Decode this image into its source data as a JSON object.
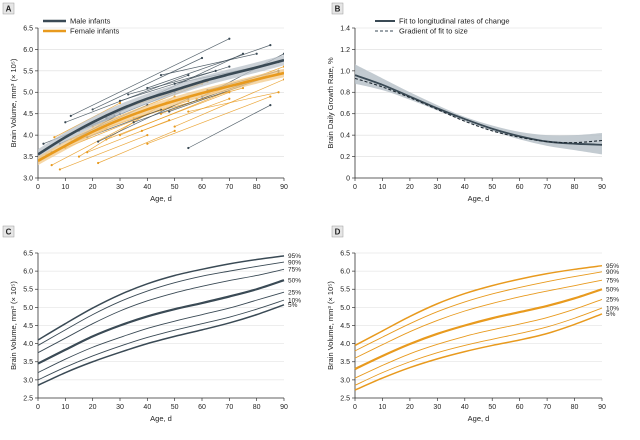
{
  "colors": {
    "male": "#3a4a55",
    "female": "#e89a1e",
    "band": "#b9c2c9",
    "grid": "#dcdcdc",
    "letter_box": "#e6e6e6"
  },
  "chart_data": [
    {
      "panel": "A",
      "type": "line",
      "xlabel": "Age, d",
      "ylabel": "Brain Volume, mm³ (× 10⁵)",
      "xlim": [
        0,
        90
      ],
      "ylim": [
        3.0,
        6.5
      ],
      "xticks": [
        "0",
        "10",
        "20",
        "30",
        "40",
        "50",
        "60",
        "70",
        "80",
        "90"
      ],
      "yticks": [
        "3.0",
        "3.5",
        "4.0",
        "4.5",
        "5.0",
        "5.5",
        "6.0",
        "6.5"
      ],
      "grid": "horizontal",
      "legend": {
        "position": "top-left",
        "entries": [
          "Male infants",
          "Female infants"
        ]
      },
      "series": [
        {
          "name": "Male infants",
          "color": "#3a4a55",
          "x": [
            0,
            10,
            20,
            30,
            40,
            50,
            60,
            70,
            80,
            90
          ],
          "y": [
            3.55,
            3.95,
            4.3,
            4.6,
            4.85,
            5.05,
            5.25,
            5.42,
            5.58,
            5.75
          ],
          "band_half_width": 0.12
        },
        {
          "name": "Female infants",
          "color": "#e89a1e",
          "x": [
            0,
            10,
            20,
            30,
            40,
            50,
            60,
            70,
            80,
            90
          ],
          "y": [
            3.4,
            3.75,
            4.08,
            4.36,
            4.6,
            4.8,
            4.98,
            5.14,
            5.3,
            5.45
          ],
          "band_half_width": 0.1
        }
      ],
      "individual_trajectories": {
        "male": [
          [
            [
              5,
              3.6
            ],
            [
              30,
              4.5
            ]
          ],
          [
            [
              10,
              4.3
            ],
            [
              55,
              5.4
            ]
          ],
          [
            [
              20,
              4.6
            ],
            [
              60,
              5.8
            ]
          ],
          [
            [
              30,
              4.8
            ],
            [
              70,
              5.6
            ]
          ],
          [
            [
              40,
              5.1
            ],
            [
              85,
              6.1
            ]
          ],
          [
            [
              50,
              5.2
            ],
            [
              88,
              5.7
            ]
          ],
          [
            [
              8,
              3.8
            ],
            [
              40,
              4.7
            ]
          ],
          [
            [
              15,
              4.1
            ],
            [
              50,
              5.0
            ]
          ],
          [
            [
              25,
              4.4
            ],
            [
              75,
              5.9
            ]
          ],
          [
            [
              35,
              4.3
            ],
            [
              80,
              5.3
            ]
          ],
          [
            [
              45,
              5.4
            ],
            [
              80,
              5.9
            ]
          ],
          [
            [
              55,
              3.7
            ],
            [
              85,
              4.7
            ]
          ],
          [
            [
              60,
              4.9
            ],
            [
              90,
              5.9
            ]
          ],
          [
            [
              12,
              4.45
            ],
            [
              70,
              6.25
            ]
          ],
          [
            [
              2,
              3.8
            ],
            [
              28,
              4.45
            ]
          ],
          [
            [
              18,
              3.95
            ],
            [
              45,
              4.6
            ]
          ],
          [
            [
              33,
              4.95
            ],
            [
              65,
              5.5
            ]
          ],
          [
            [
              48,
              4.55
            ],
            [
              88,
              5.45
            ]
          ],
          [
            [
              62,
              5.05
            ],
            [
              88,
              5.5
            ]
          ],
          [
            [
              22,
              3.85
            ],
            [
              55,
              4.85
            ]
          ]
        ],
        "female": [
          [
            [
              5,
              3.3
            ],
            [
              35,
              4.3
            ]
          ],
          [
            [
              10,
              3.7
            ],
            [
              45,
              4.6
            ]
          ],
          [
            [
              15,
              3.5
            ],
            [
              50,
              4.9
            ]
          ],
          [
            [
              20,
              4.2
            ],
            [
              60,
              5.2
            ]
          ],
          [
            [
              25,
              3.9
            ],
            [
              70,
              5.0
            ]
          ],
          [
            [
              30,
              4.0
            ],
            [
              80,
              5.3
            ]
          ],
          [
            [
              8,
              3.2
            ],
            [
              40,
              4.0
            ]
          ],
          [
            [
              12,
              3.9
            ],
            [
              55,
              4.8
            ]
          ],
          [
            [
              35,
              4.4
            ],
            [
              75,
              5.1
            ]
          ],
          [
            [
              40,
              3.8
            ],
            [
              85,
              4.9
            ]
          ],
          [
            [
              45,
              4.5
            ],
            [
              88,
              5.5
            ]
          ],
          [
            [
              50,
              4.2
            ],
            [
              90,
              5.3
            ]
          ],
          [
            [
              3,
              3.55
            ],
            [
              25,
              4.15
            ]
          ],
          [
            [
              18,
              3.6
            ],
            [
              48,
              4.35
            ]
          ],
          [
            [
              28,
              4.55
            ],
            [
              62,
              5.25
            ]
          ],
          [
            [
              55,
              4.55
            ],
            [
              88,
              5.0
            ]
          ],
          [
            [
              6,
              3.95
            ],
            [
              30,
              4.75
            ]
          ],
          [
            [
              38,
              4.1
            ],
            [
              70,
              4.85
            ]
          ],
          [
            [
              58,
              4.85
            ],
            [
              90,
              5.6
            ]
          ],
          [
            [
              22,
              3.35
            ],
            [
              50,
              4.1
            ]
          ]
        ]
      }
    },
    {
      "panel": "B",
      "type": "line",
      "xlabel": "Age, d",
      "ylabel": "Brain Daily Growth Rate, %",
      "xlim": [
        0,
        90
      ],
      "ylim": [
        0,
        1.4
      ],
      "xticks": [
        "0",
        "10",
        "20",
        "30",
        "40",
        "50",
        "60",
        "70",
        "80",
        "90"
      ],
      "yticks": [
        "0",
        "0.2",
        "0.4",
        "0.6",
        "0.8",
        "1.0",
        "1.2",
        "1.4"
      ],
      "grid": "horizontal",
      "legend": {
        "position": "top-right",
        "entries": [
          "Fit to longitudinal rates of change",
          "Gradient of fit to size"
        ]
      },
      "series": [
        {
          "name": "Fit to longitudinal rates of change",
          "style": "solid",
          "x": [
            0,
            10,
            20,
            30,
            40,
            50,
            60,
            70,
            80,
            90
          ],
          "y": [
            0.96,
            0.87,
            0.76,
            0.65,
            0.55,
            0.46,
            0.39,
            0.34,
            0.32,
            0.31
          ],
          "band_low": [
            0.88,
            0.82,
            0.73,
            0.63,
            0.53,
            0.44,
            0.36,
            0.3,
            0.26,
            0.22
          ],
          "band_high": [
            1.06,
            0.93,
            0.8,
            0.68,
            0.57,
            0.49,
            0.43,
            0.4,
            0.4,
            0.42
          ]
        },
        {
          "name": "Gradient of fit to size",
          "style": "dashed",
          "x": [
            0,
            10,
            20,
            30,
            40,
            50,
            60,
            70,
            80,
            90
          ],
          "y": [
            0.93,
            0.85,
            0.75,
            0.64,
            0.53,
            0.44,
            0.38,
            0.34,
            0.33,
            0.35
          ]
        }
      ]
    },
    {
      "panel": "C",
      "type": "line",
      "xlabel": "Age, d",
      "ylabel": "Brain Volume, mm³ (× 10⁵)",
      "xlim": [
        0,
        90
      ],
      "ylim": [
        2.5,
        6.5
      ],
      "xticks": [
        "0",
        "10",
        "20",
        "30",
        "40",
        "50",
        "60",
        "70",
        "80",
        "90"
      ],
      "yticks": [
        "2.5",
        "3.0",
        "3.5",
        "4.0",
        "4.5",
        "5.0",
        "5.5",
        "6.0",
        "6.5"
      ],
      "grid": "horizontal",
      "color": "#3a4a55",
      "series": [
        {
          "name": "95%",
          "x": [
            0,
            10,
            20,
            30,
            40,
            50,
            60,
            70,
            80,
            90
          ],
          "y": [
            4.1,
            4.55,
            4.98,
            5.35,
            5.65,
            5.88,
            6.05,
            6.2,
            6.32,
            6.42
          ]
        },
        {
          "name": "90%",
          "x": [
            0,
            10,
            20,
            30,
            40,
            50,
            60,
            70,
            80,
            90
          ],
          "y": [
            3.95,
            4.38,
            4.8,
            5.16,
            5.45,
            5.68,
            5.86,
            6.0,
            6.13,
            6.25
          ]
        },
        {
          "name": "75%",
          "x": [
            0,
            10,
            20,
            30,
            40,
            50,
            60,
            70,
            80,
            90
          ],
          "y": [
            3.75,
            4.15,
            4.55,
            4.9,
            5.18,
            5.4,
            5.58,
            5.74,
            5.88,
            6.05
          ]
        },
        {
          "name": "50%",
          "x": [
            0,
            10,
            20,
            30,
            40,
            50,
            60,
            70,
            80,
            90
          ],
          "y": [
            3.45,
            3.83,
            4.2,
            4.5,
            4.75,
            4.95,
            5.12,
            5.3,
            5.5,
            5.75
          ]
        },
        {
          "name": "25%",
          "x": [
            0,
            10,
            20,
            30,
            40,
            50,
            60,
            70,
            80,
            90
          ],
          "y": [
            3.2,
            3.57,
            3.9,
            4.17,
            4.42,
            4.62,
            4.8,
            4.98,
            5.2,
            5.42
          ]
        },
        {
          "name": "10%",
          "x": [
            0,
            10,
            20,
            30,
            40,
            50,
            60,
            70,
            80,
            90
          ],
          "y": [
            3.0,
            3.35,
            3.66,
            3.93,
            4.17,
            4.37,
            4.55,
            4.73,
            4.95,
            5.2
          ]
        },
        {
          "name": "5%",
          "x": [
            0,
            10,
            20,
            30,
            40,
            50,
            60,
            70,
            80,
            90
          ],
          "y": [
            2.85,
            3.2,
            3.5,
            3.76,
            4.0,
            4.2,
            4.38,
            4.57,
            4.8,
            5.07
          ]
        }
      ]
    },
    {
      "panel": "D",
      "type": "line",
      "xlabel": "Age, d",
      "ylabel": "Brain Volume, mm³ (× 10⁵)",
      "xlim": [
        0,
        90
      ],
      "ylim": [
        2.5,
        6.5
      ],
      "xticks": [
        "0",
        "10",
        "20",
        "30",
        "40",
        "50",
        "60",
        "70",
        "80",
        "90"
      ],
      "yticks": [
        "2.5",
        "3.0",
        "3.5",
        "4.0",
        "4.5",
        "5.0",
        "5.5",
        "6.0",
        "6.5"
      ],
      "grid": "horizontal",
      "color": "#e89a1e",
      "series": [
        {
          "name": "95%",
          "x": [
            0,
            10,
            20,
            30,
            40,
            50,
            60,
            70,
            80,
            90
          ],
          "y": [
            3.95,
            4.35,
            4.75,
            5.1,
            5.38,
            5.6,
            5.78,
            5.93,
            6.05,
            6.15
          ]
        },
        {
          "name": "90%",
          "x": [
            0,
            10,
            20,
            30,
            40,
            50,
            60,
            70,
            80,
            90
          ],
          "y": [
            3.8,
            4.18,
            4.55,
            4.88,
            5.15,
            5.37,
            5.55,
            5.71,
            5.85,
            5.98
          ]
        },
        {
          "name": "75%",
          "x": [
            0,
            10,
            20,
            30,
            40,
            50,
            60,
            70,
            80,
            90
          ],
          "y": [
            3.6,
            3.97,
            4.33,
            4.64,
            4.9,
            5.11,
            5.29,
            5.45,
            5.6,
            5.75
          ]
        },
        {
          "name": "50%",
          "x": [
            0,
            10,
            20,
            30,
            40,
            50,
            60,
            70,
            80,
            90
          ],
          "y": [
            3.3,
            3.66,
            3.99,
            4.27,
            4.5,
            4.7,
            4.87,
            5.04,
            5.25,
            5.5
          ]
        },
        {
          "name": "25%",
          "x": [
            0,
            10,
            20,
            30,
            40,
            50,
            60,
            70,
            80,
            90
          ],
          "y": [
            3.05,
            3.4,
            3.72,
            3.98,
            4.2,
            4.38,
            4.54,
            4.72,
            4.95,
            5.22
          ]
        },
        {
          "name": "10%",
          "x": [
            0,
            10,
            20,
            30,
            40,
            50,
            60,
            70,
            80,
            90
          ],
          "y": [
            2.85,
            3.2,
            3.5,
            3.75,
            3.95,
            4.12,
            4.28,
            4.46,
            4.7,
            4.98
          ]
        },
        {
          "name": "5%",
          "x": [
            0,
            10,
            20,
            30,
            40,
            50,
            60,
            70,
            80,
            90
          ],
          "y": [
            2.72,
            3.05,
            3.34,
            3.58,
            3.78,
            3.95,
            4.1,
            4.28,
            4.53,
            4.82
          ]
        }
      ]
    }
  ]
}
